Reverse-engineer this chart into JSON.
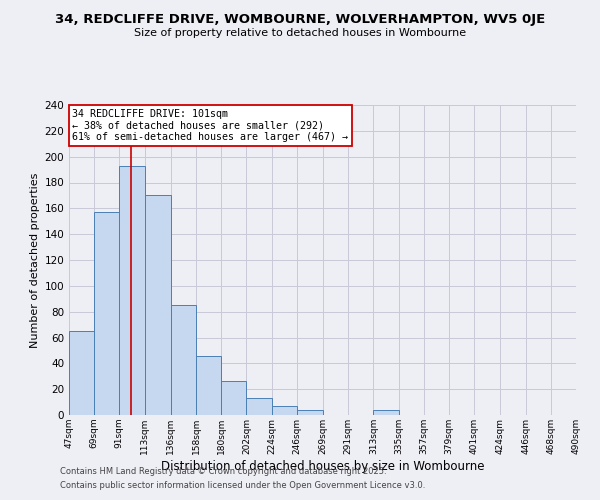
{
  "title": "34, REDCLIFFE DRIVE, WOMBOURNE, WOLVERHAMPTON, WV5 0JE",
  "subtitle": "Size of property relative to detached houses in Wombourne",
  "xlabel": "Distribution of detached houses by size in Wombourne",
  "ylabel": "Number of detached properties",
  "bar_edges": [
    47,
    69,
    91,
    113,
    136,
    158,
    180,
    202,
    224,
    246,
    269,
    291,
    313,
    335,
    357,
    379,
    401,
    424,
    446,
    468,
    490
  ],
  "bar_heights": [
    65,
    157,
    193,
    170,
    85,
    46,
    26,
    13,
    7,
    4,
    0,
    0,
    4,
    0,
    0,
    0,
    0,
    0,
    0,
    0
  ],
  "bar_color": "#c5d8f0",
  "bar_edge_color": "#4a7fb5",
  "grid_color": "#c8c8d8",
  "background_color": "#eeeef5",
  "vline_x": 101,
  "vline_color": "#cc0000",
  "annotation_title": "34 REDCLIFFE DRIVE: 101sqm",
  "annotation_line1": "← 38% of detached houses are smaller (292)",
  "annotation_line2": "61% of semi-detached houses are larger (467) →",
  "annotation_box_color": "#ffffff",
  "annotation_box_edge": "#cc0000",
  "xlim": [
    47,
    490
  ],
  "ylim": [
    0,
    240
  ],
  "yticks": [
    0,
    20,
    40,
    60,
    80,
    100,
    120,
    140,
    160,
    180,
    200,
    220,
    240
  ],
  "xtick_labels": [
    "47sqm",
    "69sqm",
    "91sqm",
    "113sqm",
    "136sqm",
    "158sqm",
    "180sqm",
    "202sqm",
    "224sqm",
    "246sqm",
    "269sqm",
    "291sqm",
    "313sqm",
    "335sqm",
    "357sqm",
    "379sqm",
    "401sqm",
    "424sqm",
    "446sqm",
    "468sqm",
    "490sqm"
  ],
  "footer1": "Contains HM Land Registry data © Crown copyright and database right 2025.",
  "footer2": "Contains public sector information licensed under the Open Government Licence v3.0."
}
